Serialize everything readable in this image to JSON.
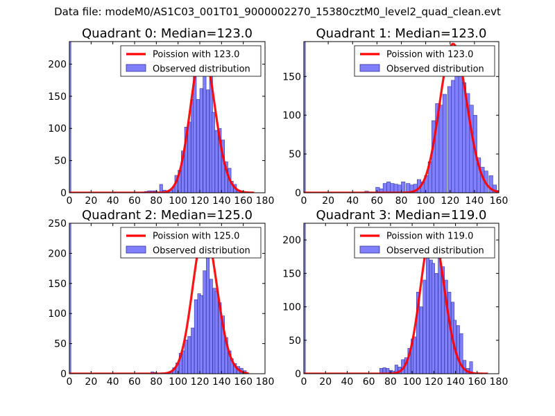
{
  "figure": {
    "suptitle": "Data file: modeM0/AS1C03_001T01_9000002270_15380cztM0_level2_quad_clean.evt"
  },
  "chart_data": [
    {
      "type": "bar",
      "title": "Quadrant 0: Median=123.0",
      "xlim": [
        0,
        180
      ],
      "ylim": [
        0,
        235
      ],
      "xticks": [
        0,
        20,
        40,
        60,
        80,
        100,
        120,
        140,
        160,
        180
      ],
      "yticks": [
        0,
        50,
        100,
        150,
        200
      ],
      "legend_position": "upper right",
      "bin_width": 2.8,
      "spike": {
        "x": 0,
        "value": 235
      },
      "bars": [
        {
          "x": 66,
          "y": 1
        },
        {
          "x": 69,
          "y": 2
        },
        {
          "x": 72,
          "y": 3
        },
        {
          "x": 75,
          "y": 3
        },
        {
          "x": 78,
          "y": 3
        },
        {
          "x": 80,
          "y": 1
        },
        {
          "x": 83,
          "y": 13
        },
        {
          "x": 86,
          "y": 4
        },
        {
          "x": 89,
          "y": 3
        },
        {
          "x": 92,
          "y": 4
        },
        {
          "x": 95,
          "y": 8
        },
        {
          "x": 97,
          "y": 27
        },
        {
          "x": 100,
          "y": 35
        },
        {
          "x": 103,
          "y": 65
        },
        {
          "x": 106,
          "y": 102
        },
        {
          "x": 109,
          "y": 110
        },
        {
          "x": 112,
          "y": 145
        },
        {
          "x": 114,
          "y": 198
        },
        {
          "x": 117,
          "y": 145
        },
        {
          "x": 120,
          "y": 162
        },
        {
          "x": 123,
          "y": 220
        },
        {
          "x": 126,
          "y": 160
        },
        {
          "x": 129,
          "y": 205
        },
        {
          "x": 131,
          "y": 125
        },
        {
          "x": 134,
          "y": 97
        },
        {
          "x": 137,
          "y": 100
        },
        {
          "x": 140,
          "y": 82
        },
        {
          "x": 143,
          "y": 48
        },
        {
          "x": 146,
          "y": 38
        },
        {
          "x": 148,
          "y": 18
        },
        {
          "x": 151,
          "y": 13
        },
        {
          "x": 154,
          "y": 3
        },
        {
          "x": 157,
          "y": 2
        }
      ],
      "series": [
        {
          "name": "Poission with 123.0",
          "type": "line",
          "color": "#ff0000",
          "distribution": "poisson",
          "mean": 123.0,
          "peak": 223,
          "x_range": [
            0,
            170
          ]
        },
        {
          "name": "Observed distribution",
          "type": "bar",
          "color": "#8080ff",
          "edge_color": "#30309a"
        }
      ]
    },
    {
      "type": "bar",
      "title": "Quadrant 1: Median=123.0",
      "xlim": [
        0,
        160
      ],
      "ylim": [
        0,
        195
      ],
      "xticks": [
        0,
        20,
        40,
        60,
        80,
        100,
        120,
        140,
        160
      ],
      "yticks": [
        0,
        50,
        100,
        150
      ],
      "legend_position": "upper right",
      "bin_width": 3.1,
      "spike": {
        "x": 0,
        "value": 195
      },
      "bars": [
        {
          "x": 50,
          "y": 2
        },
        {
          "x": 53,
          "y": 1
        },
        {
          "x": 56,
          "y": 1
        },
        {
          "x": 59,
          "y": 7
        },
        {
          "x": 62,
          "y": 5
        },
        {
          "x": 65,
          "y": 12
        },
        {
          "x": 68,
          "y": 14
        },
        {
          "x": 71,
          "y": 12
        },
        {
          "x": 74,
          "y": 11
        },
        {
          "x": 77,
          "y": 10
        },
        {
          "x": 80,
          "y": 14
        },
        {
          "x": 84,
          "y": 12
        },
        {
          "x": 87,
          "y": 10
        },
        {
          "x": 90,
          "y": 11
        },
        {
          "x": 93,
          "y": 17
        },
        {
          "x": 96,
          "y": 14
        },
        {
          "x": 99,
          "y": 22
        },
        {
          "x": 102,
          "y": 40
        },
        {
          "x": 105,
          "y": 93
        },
        {
          "x": 108,
          "y": 115
        },
        {
          "x": 111,
          "y": 113
        },
        {
          "x": 114,
          "y": 127
        },
        {
          "x": 118,
          "y": 137
        },
        {
          "x": 121,
          "y": 145
        },
        {
          "x": 124,
          "y": 175
        },
        {
          "x": 127,
          "y": 167
        },
        {
          "x": 130,
          "y": 142
        },
        {
          "x": 133,
          "y": 128
        },
        {
          "x": 136,
          "y": 113
        },
        {
          "x": 139,
          "y": 100
        },
        {
          "x": 142,
          "y": 45
        },
        {
          "x": 145,
          "y": 33
        },
        {
          "x": 148,
          "y": 28
        },
        {
          "x": 152,
          "y": 22
        },
        {
          "x": 155,
          "y": 10
        },
        {
          "x": 158,
          "y": 3
        }
      ],
      "series": [
        {
          "name": "Poission with 123.0",
          "type": "line",
          "color": "#ff0000",
          "distribution": "poisson",
          "mean": 123.0,
          "peak": 192,
          "x_range": [
            0,
            160
          ]
        },
        {
          "name": "Observed distribution",
          "type": "bar",
          "color": "#8080ff",
          "edge_color": "#30309a"
        }
      ]
    },
    {
      "type": "bar",
      "title": "Quadrant 2: Median=125.0",
      "xlim": [
        0,
        180
      ],
      "ylim": [
        0,
        250
      ],
      "xticks": [
        0,
        20,
        40,
        60,
        80,
        100,
        120,
        140,
        160,
        180
      ],
      "yticks": [
        0,
        50,
        100,
        150,
        200,
        250
      ],
      "legend_position": "upper right",
      "bin_width": 2.8,
      "spike": {
        "x": 0,
        "value": 250
      },
      "bars": [
        {
          "x": 75,
          "y": 3
        },
        {
          "x": 78,
          "y": 2
        },
        {
          "x": 88,
          "y": 1
        },
        {
          "x": 92,
          "y": 3
        },
        {
          "x": 95,
          "y": 10
        },
        {
          "x": 98,
          "y": 18
        },
        {
          "x": 101,
          "y": 34
        },
        {
          "x": 104,
          "y": 38
        },
        {
          "x": 106,
          "y": 56
        },
        {
          "x": 109,
          "y": 62
        },
        {
          "x": 112,
          "y": 76
        },
        {
          "x": 115,
          "y": 123
        },
        {
          "x": 118,
          "y": 133
        },
        {
          "x": 120,
          "y": 130
        },
        {
          "x": 123,
          "y": 171
        },
        {
          "x": 126,
          "y": 237
        },
        {
          "x": 129,
          "y": 157
        },
        {
          "x": 132,
          "y": 142
        },
        {
          "x": 134,
          "y": 137
        },
        {
          "x": 137,
          "y": 118
        },
        {
          "x": 140,
          "y": 96
        },
        {
          "x": 143,
          "y": 60
        },
        {
          "x": 146,
          "y": 38
        },
        {
          "x": 148,
          "y": 25
        },
        {
          "x": 151,
          "y": 17
        },
        {
          "x": 154,
          "y": 12
        },
        {
          "x": 157,
          "y": 9
        },
        {
          "x": 160,
          "y": 5
        }
      ],
      "series": [
        {
          "name": "Poission with 125.0",
          "type": "line",
          "color": "#ff0000",
          "distribution": "poisson",
          "mean": 125.0,
          "peak": 238,
          "x_range": [
            0,
            165
          ]
        },
        {
          "name": "Observed distribution",
          "type": "bar",
          "color": "#8080ff",
          "edge_color": "#30309a"
        }
      ]
    },
    {
      "type": "bar",
      "title": "Quadrant 3: Median=119.0",
      "xlim": [
        0,
        180
      ],
      "ylim": [
        0,
        225
      ],
      "xticks": [
        0,
        20,
        40,
        60,
        80,
        100,
        120,
        140,
        160,
        180
      ],
      "yticks": [
        0,
        50,
        100,
        150,
        200
      ],
      "legend_position": "upper right",
      "bin_width": 2.8,
      "spike": {
        "x": 0,
        "value": 225
      },
      "bars": [
        {
          "x": 70,
          "y": 8
        },
        {
          "x": 73,
          "y": 9
        },
        {
          "x": 76,
          "y": 8
        },
        {
          "x": 79,
          "y": 5
        },
        {
          "x": 81,
          "y": 4
        },
        {
          "x": 84,
          "y": 13
        },
        {
          "x": 87,
          "y": 10
        },
        {
          "x": 90,
          "y": 21
        },
        {
          "x": 93,
          "y": 24
        },
        {
          "x": 96,
          "y": 38
        },
        {
          "x": 99,
          "y": 52
        },
        {
          "x": 101,
          "y": 55
        },
        {
          "x": 104,
          "y": 122
        },
        {
          "x": 107,
          "y": 100
        },
        {
          "x": 110,
          "y": 140
        },
        {
          "x": 113,
          "y": 185
        },
        {
          "x": 116,
          "y": 170
        },
        {
          "x": 118,
          "y": 165
        },
        {
          "x": 121,
          "y": 150
        },
        {
          "x": 124,
          "y": 180
        },
        {
          "x": 127,
          "y": 160
        },
        {
          "x": 130,
          "y": 140
        },
        {
          "x": 133,
          "y": 122
        },
        {
          "x": 136,
          "y": 107
        },
        {
          "x": 138,
          "y": 80
        },
        {
          "x": 141,
          "y": 72
        },
        {
          "x": 144,
          "y": 60
        },
        {
          "x": 147,
          "y": 20
        },
        {
          "x": 150,
          "y": 8
        },
        {
          "x": 153,
          "y": 18
        }
      ],
      "series": [
        {
          "name": "Poission with 119.0",
          "type": "line",
          "color": "#ff0000",
          "distribution": "poisson",
          "mean": 119.0,
          "peak": 214,
          "x_range": [
            0,
            170
          ]
        },
        {
          "name": "Observed distribution",
          "type": "bar",
          "color": "#8080ff",
          "edge_color": "#30309a"
        }
      ]
    }
  ]
}
